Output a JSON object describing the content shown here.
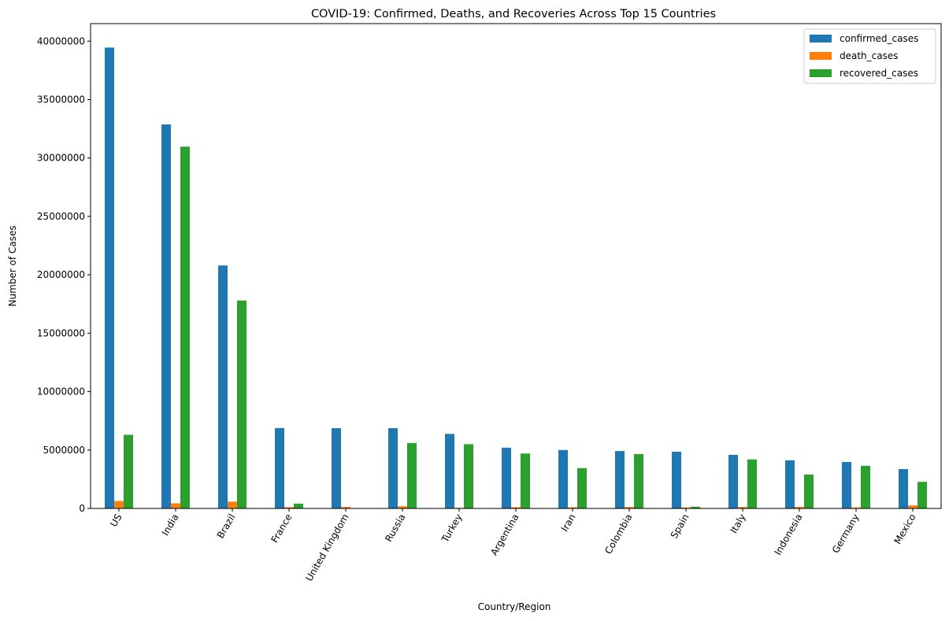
{
  "chart_data": {
    "type": "bar",
    "title": "COVID-19: Confirmed, Deaths, and Recoveries Across Top 15 Countries",
    "xlabel": "Country/Region",
    "ylabel": "Number of Cases",
    "ylim": [
      0,
      41500000
    ],
    "yticks": [
      0,
      5000000,
      10000000,
      15000000,
      20000000,
      25000000,
      30000000,
      35000000,
      40000000
    ],
    "ytick_labels": [
      "0",
      "5000000",
      "10000000",
      "15000000",
      "20000000",
      "25000000",
      "30000000",
      "35000000",
      "40000000"
    ],
    "legend_position": "top-right",
    "grid": false,
    "categories": [
      "US",
      "India",
      "Brazil",
      "France",
      "United Kingdom",
      "Russia",
      "Turkey",
      "Argentina",
      "Iran",
      "Colombia",
      "Spain",
      "Italy",
      "Indonesia",
      "Germany",
      "Mexico"
    ],
    "series": [
      {
        "name": "confirmed_cases",
        "color": "#1f77b4",
        "values": [
          39450000,
          32870000,
          20800000,
          6880000,
          6870000,
          6870000,
          6380000,
          5200000,
          5000000,
          4910000,
          4860000,
          4590000,
          4120000,
          3980000,
          3370000
        ]
      },
      {
        "name": "death_cases",
        "color": "#ff7f0e",
        "values": [
          640000,
          440000,
          580000,
          115000,
          133000,
          190000,
          57000,
          112000,
          108000,
          125000,
          85000,
          129000,
          135000,
          93000,
          260000
        ]
      },
      {
        "name": "recovered_cases",
        "color": "#2ca02c",
        "values": [
          6300000,
          30970000,
          17800000,
          415000,
          25000,
          5600000,
          5500000,
          4700000,
          3450000,
          4650000,
          150000,
          4200000,
          2900000,
          3650000,
          2280000
        ]
      }
    ]
  }
}
